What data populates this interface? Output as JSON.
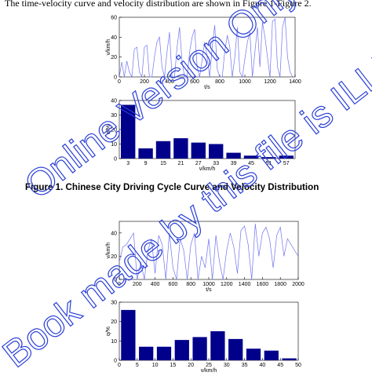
{
  "intro_text": "The time-velocity curve and velocity distribution are shown in Figure 1-Figure 2.",
  "figure1_caption": "Figure 1. Chinese City Driving Cycle Curve and Velocity Distribution",
  "watermark": {
    "line1": "Online Version Only.",
    "line2": "Book made by this file is ILLEGAL.",
    "color": "#2a3fd6"
  },
  "colors": {
    "line": "#6f74f0",
    "bar": "#00008b",
    "axis": "#000000"
  },
  "chart_data": [
    {
      "type": "line",
      "xlabel": "t/s",
      "ylabel": "v/km/h",
      "xlim": [
        0,
        1400
      ],
      "ylim": [
        0,
        60
      ],
      "xticks": [
        0,
        200,
        400,
        600,
        800,
        1000,
        1200,
        1400
      ],
      "yticks": [
        0,
        20,
        40,
        60
      ],
      "x": [
        0,
        20,
        40,
        60,
        80,
        100,
        120,
        140,
        160,
        180,
        200,
        220,
        240,
        260,
        280,
        300,
        320,
        340,
        360,
        380,
        400,
        420,
        440,
        460,
        480,
        500,
        520,
        540,
        560,
        580,
        600,
        620,
        640,
        660,
        680,
        700,
        720,
        740,
        760,
        780,
        800,
        820,
        840,
        860,
        880,
        900,
        920,
        940,
        960,
        980,
        1000,
        1020,
        1040,
        1060,
        1080,
        1100,
        1120,
        1140,
        1160,
        1200,
        1220,
        1240,
        1260,
        1280,
        1300,
        1320,
        1340,
        1360,
        1380
      ],
      "y": [
        0,
        15,
        0,
        16,
        5,
        0,
        28,
        30,
        5,
        0,
        30,
        32,
        0,
        0,
        20,
        35,
        40,
        10,
        0,
        25,
        45,
        0,
        0,
        30,
        50,
        15,
        0,
        0,
        25,
        40,
        48,
        10,
        0,
        18,
        35,
        20,
        0,
        30,
        52,
        8,
        0,
        0,
        26,
        42,
        30,
        0,
        20,
        50,
        5,
        0,
        18,
        35,
        45,
        0,
        25,
        50,
        10,
        55,
        40,
        0,
        56,
        58,
        10,
        0,
        50,
        60,
        20,
        5,
        0
      ]
    },
    {
      "type": "bar",
      "xlabel": "v/km/h",
      "ylabel": "q/%",
      "categories": [
        "3",
        "9",
        "15",
        "21",
        "27",
        "33",
        "39",
        "45",
        "51",
        "57"
      ],
      "values": [
        37,
        7,
        12,
        14,
        11,
        10,
        4,
        2,
        1,
        2
      ],
      "ylim": [
        0,
        40
      ],
      "yticks": [
        0,
        10,
        20,
        30,
        40
      ]
    },
    {
      "type": "line",
      "xlabel": "t/s",
      "ylabel": "v/km/h",
      "xlim": [
        0,
        2000
      ],
      "ylim": [
        0,
        50
      ],
      "xticks": [
        0,
        200,
        400,
        600,
        800,
        1000,
        1200,
        1400,
        1600,
        1800,
        2000
      ],
      "yticks": [
        0,
        20,
        40
      ],
      "x": [
        0,
        40,
        80,
        120,
        160,
        200,
        240,
        280,
        320,
        360,
        400,
        440,
        480,
        520,
        560,
        600,
        640,
        680,
        720,
        760,
        800,
        840,
        880,
        920,
        960,
        1000,
        1040,
        1080,
        1120,
        1160,
        1200,
        1240,
        1280,
        1320,
        1360,
        1400,
        1440,
        1480,
        1520,
        1560,
        1600,
        1640,
        1680,
        1720,
        1760,
        1800,
        1840,
        1880,
        1920,
        1960,
        2000
      ],
      "y": [
        15,
        28,
        30,
        35,
        40,
        0,
        15,
        0,
        25,
        35,
        5,
        38,
        30,
        0,
        40,
        10,
        0,
        35,
        25,
        0,
        30,
        40,
        0,
        20,
        10,
        35,
        0,
        38,
        15,
        0,
        25,
        40,
        28,
        5,
        42,
        46,
        30,
        0,
        48,
        20,
        40,
        45,
        35,
        10,
        38,
        45,
        20,
        35,
        30,
        25,
        20
      ]
    },
    {
      "type": "bar",
      "xlabel": "v/km/h",
      "ylabel": "q/%",
      "categories": [
        "2.5",
        "7.5",
        "12.5",
        "17.5",
        "22.5",
        "27.5",
        "32.5",
        "37.5",
        "42.5",
        "47.5"
      ],
      "values": [
        26,
        7,
        7,
        10.5,
        12,
        15,
        11,
        6,
        5,
        1
      ],
      "xlim": [
        0,
        50
      ],
      "ylim": [
        0,
        30
      ],
      "xticks": [
        0,
        5,
        10,
        15,
        20,
        25,
        30,
        35,
        40,
        45,
        50
      ],
      "yticks": [
        0,
        10,
        20,
        30
      ]
    }
  ]
}
